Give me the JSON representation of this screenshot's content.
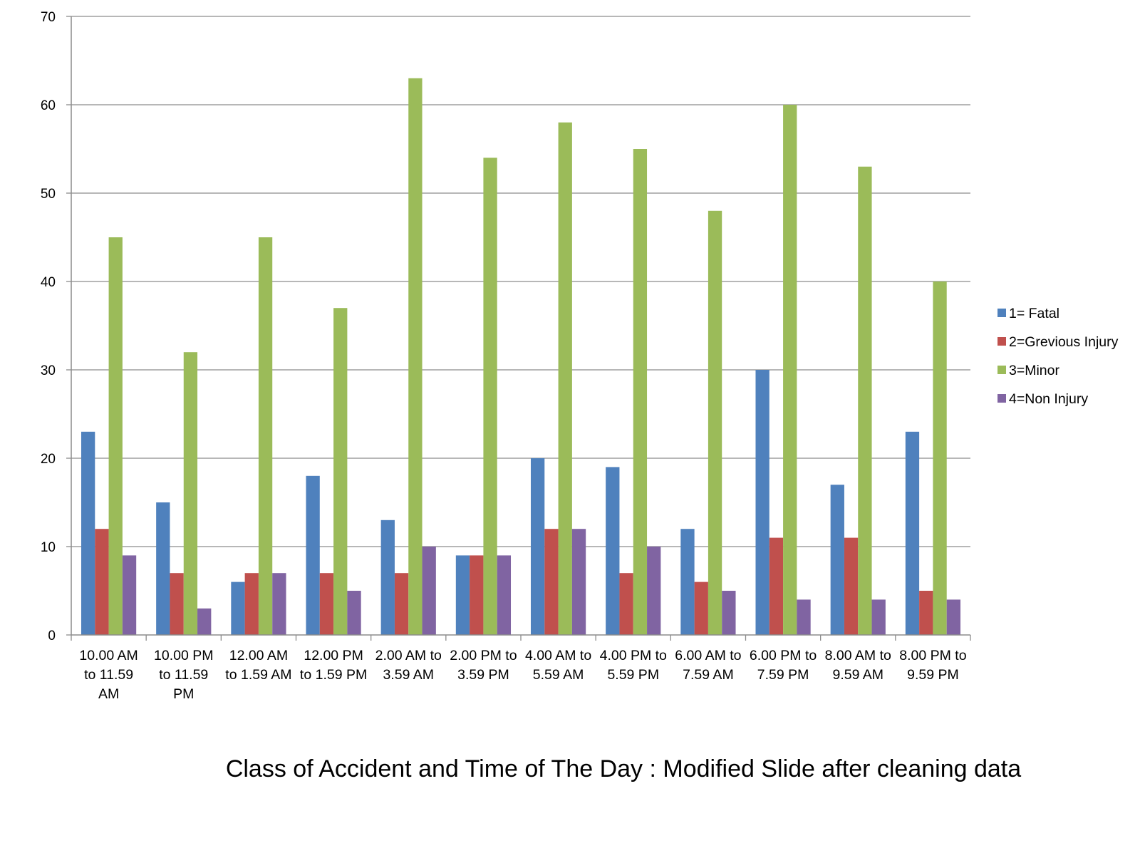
{
  "chart_data": {
    "type": "bar",
    "categories": [
      [
        "10.00 AM",
        "to 11.59",
        "AM"
      ],
      [
        "10.00 PM",
        "to 11.59",
        "PM"
      ],
      [
        "12.00 AM",
        "to 1.59 AM"
      ],
      [
        "12.00 PM",
        "to 1.59 PM"
      ],
      [
        "2.00 AM to",
        "3.59 AM"
      ],
      [
        "2.00 PM to",
        "3.59 PM"
      ],
      [
        "4.00 AM to",
        "5.59 AM"
      ],
      [
        "4.00 PM to",
        "5.59 PM"
      ],
      [
        "6.00 AM to",
        "7.59 AM"
      ],
      [
        "6.00 PM to",
        "7.59 PM"
      ],
      [
        "8.00 AM to",
        "9.59 AM"
      ],
      [
        "8.00 PM to",
        "9.59 PM"
      ]
    ],
    "series": [
      {
        "name": "1= Fatal",
        "color": "#4F81BD",
        "values": [
          23,
          15,
          6,
          18,
          13,
          9,
          20,
          19,
          12,
          30,
          17,
          23
        ]
      },
      {
        "name": "2=Grevious Injury",
        "color": "#C0504D",
        "values": [
          12,
          7,
          7,
          7,
          7,
          9,
          12,
          7,
          6,
          11,
          11,
          5
        ]
      },
      {
        "name": "3=Minor",
        "color": "#9BBB59",
        "values": [
          45,
          32,
          45,
          37,
          63,
          54,
          58,
          55,
          48,
          60,
          53,
          40
        ]
      },
      {
        "name": "4=Non Injury",
        "color": "#8064A2",
        "values": [
          9,
          3,
          7,
          5,
          10,
          9,
          12,
          10,
          5,
          4,
          4,
          4
        ]
      }
    ],
    "ylim": [
      0,
      70
    ],
    "yticks": [
      0,
      10,
      20,
      30,
      40,
      50,
      60,
      70
    ],
    "grid": true,
    "legend_position": "right",
    "title": "Class of Accident and Time of The Day : Modified Slide after cleaning data",
    "xlabel": "",
    "ylabel": ""
  }
}
